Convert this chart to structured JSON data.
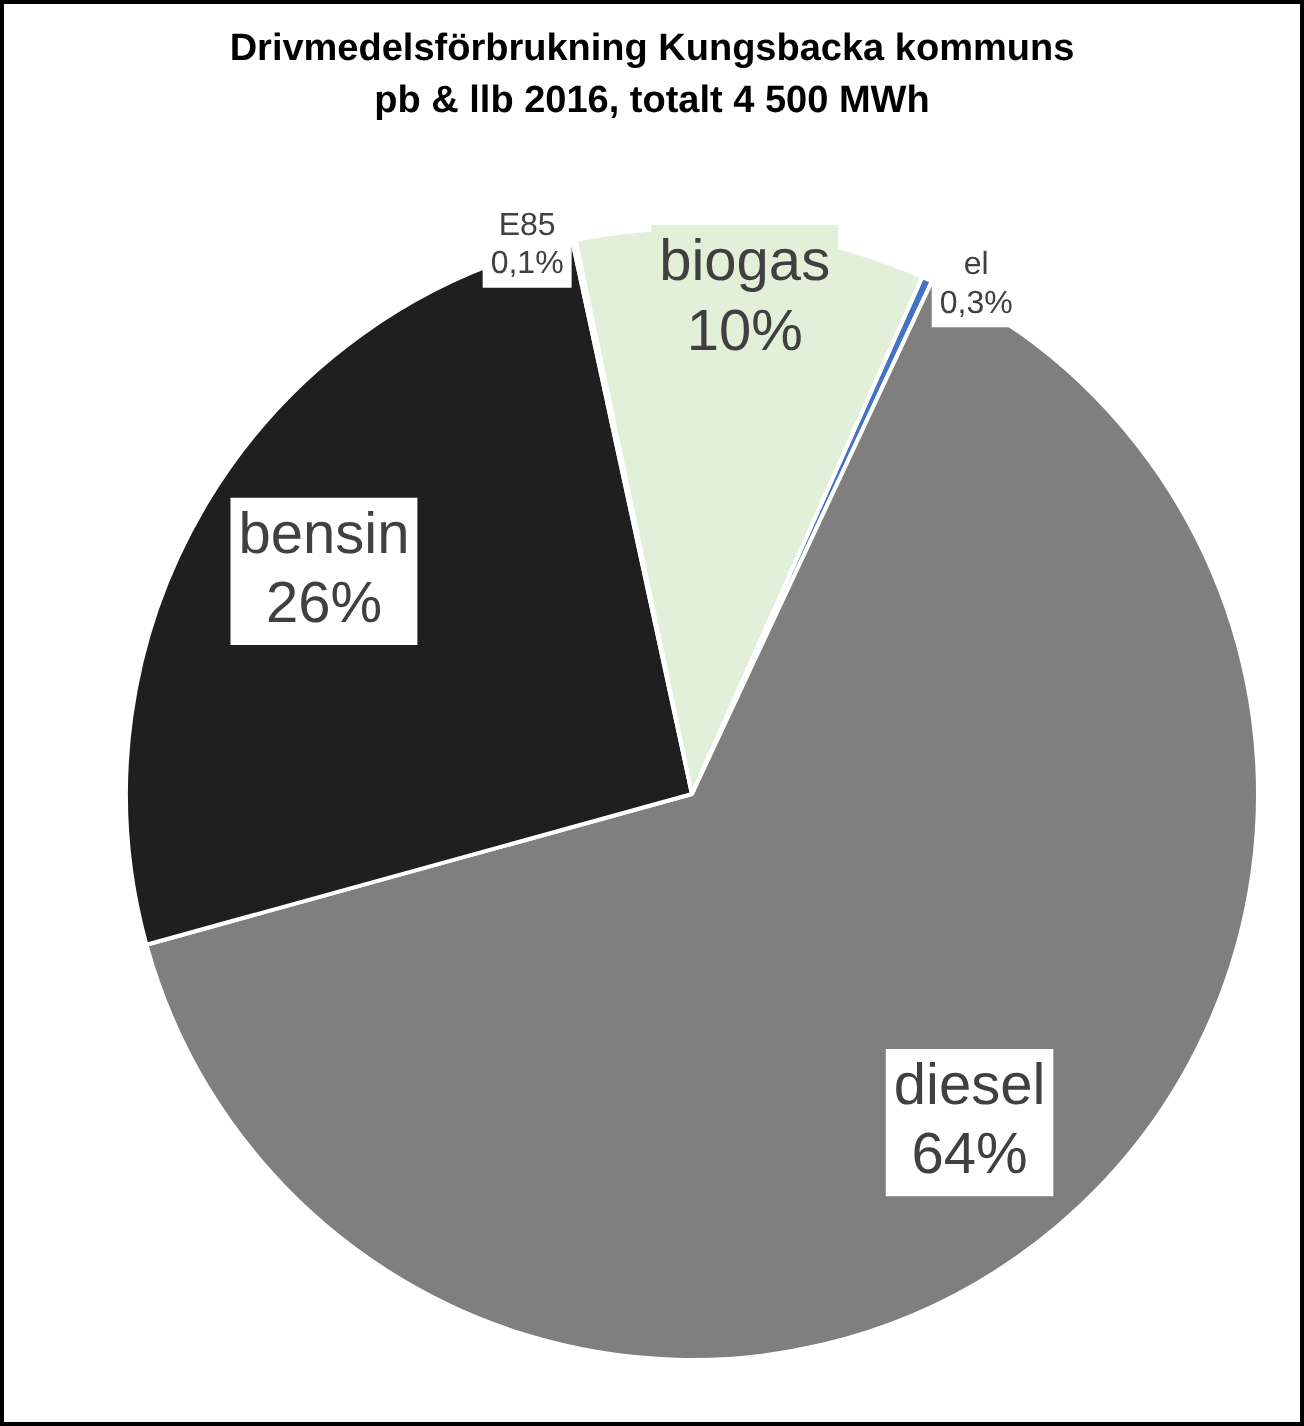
{
  "chart_data": {
    "type": "pie",
    "title": "Drivmedelsförbrukning Kungsbacka kommuns pb & llb 2016, totalt 4 500 MWh",
    "categories": [
      "el",
      "diesel",
      "bensin",
      "E85",
      "biogas"
    ],
    "values": [
      0.3,
      64,
      26,
      0.1,
      10
    ],
    "value_labels": [
      "0,3%",
      "64%",
      "26%",
      "0,1%",
      "10%"
    ],
    "colors": [
      "#4472c4",
      "#7f7f7f",
      "#1f1f1f",
      "#c5e0b4",
      "#e2f0d9"
    ],
    "legend": false
  }
}
